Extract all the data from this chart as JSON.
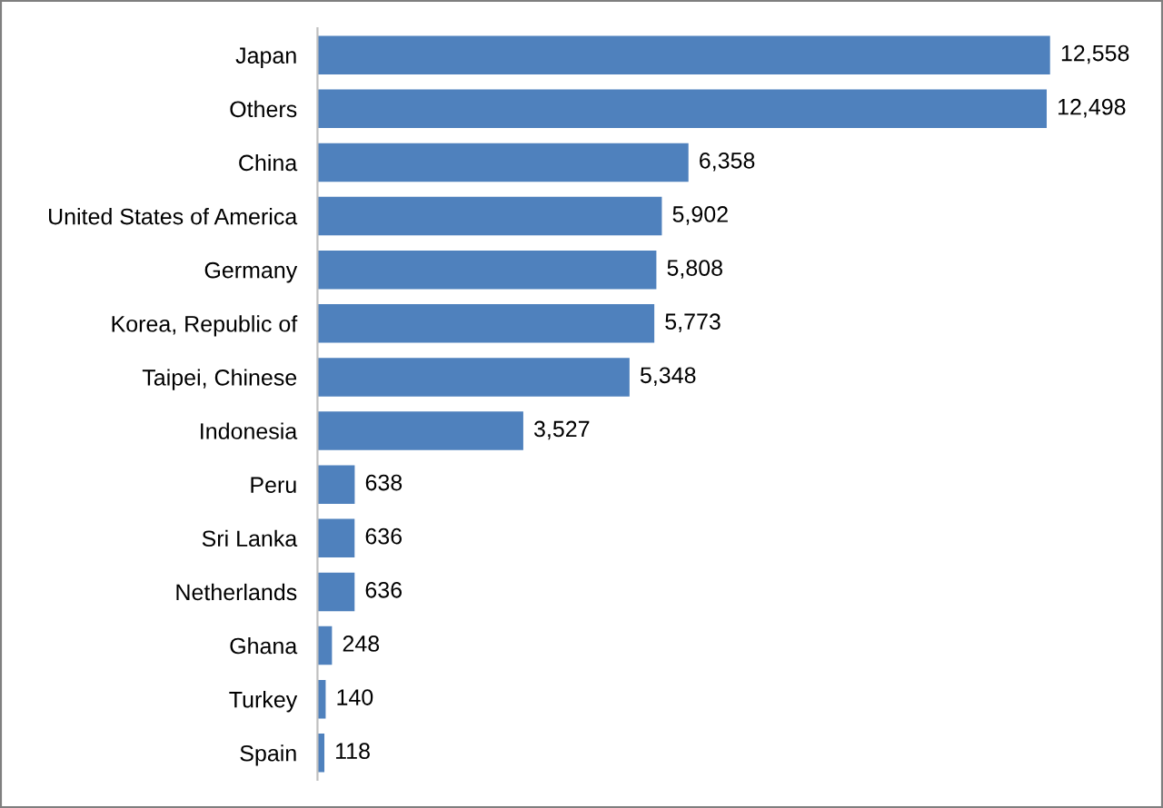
{
  "chart_data": {
    "type": "bar",
    "orientation": "horizontal",
    "categories": [
      "Japan",
      "Others",
      "China",
      "United States of America",
      "Germany",
      "Korea, Republic of",
      "Taipei, Chinese",
      "Indonesia",
      "Peru",
      "Sri Lanka",
      "Netherlands",
      "Ghana",
      "Turkey",
      "Spain"
    ],
    "values": [
      12558,
      12498,
      6358,
      5902,
      5808,
      5773,
      5348,
      3527,
      638,
      636,
      636,
      248,
      140,
      118
    ],
    "value_labels": [
      "12,558",
      "12,498",
      "6,358",
      "5,902",
      "5,808",
      "5,773",
      "5,348",
      "3,527",
      "638",
      "636",
      "636",
      "248",
      "140",
      "118"
    ],
    "color": "#4f81bd",
    "grid": false,
    "legend": false
  }
}
